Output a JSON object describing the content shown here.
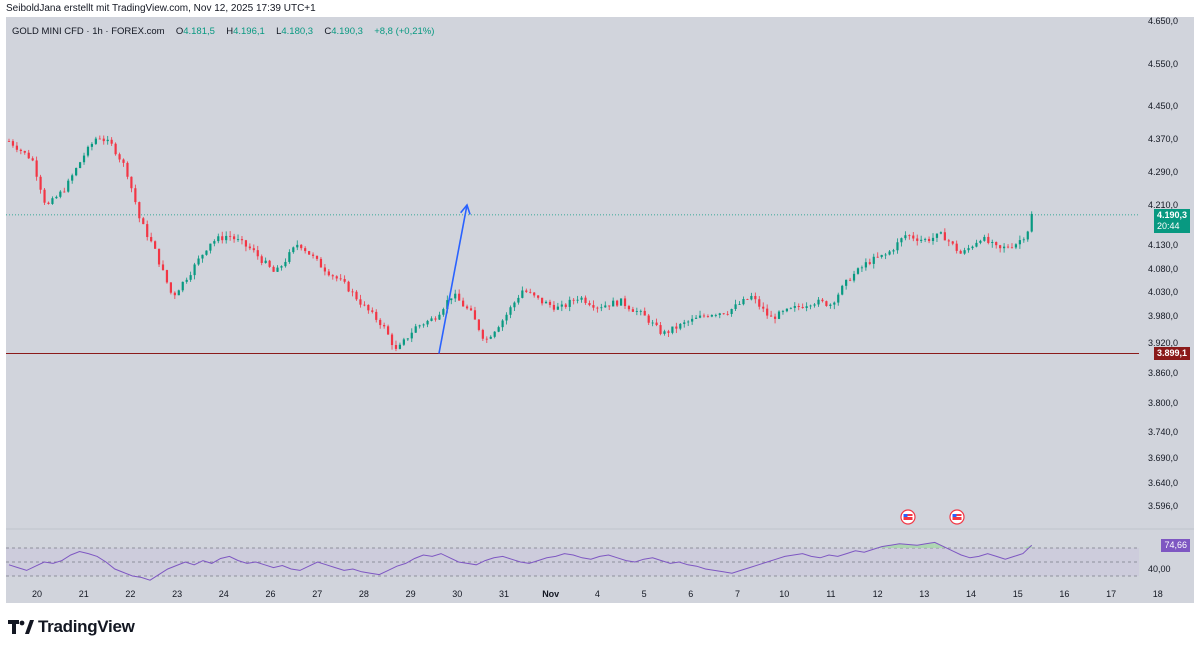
{
  "attribution": "SeiboldJana erstellt mit TradingView.com, Nov 12, 2025 17:39 UTC+1",
  "legend": {
    "symbol": "GOLD MINI CFD · 1h · FOREX.com",
    "open_label": "O",
    "open": "4.181,5",
    "high_label": "H",
    "high": "4.196,1",
    "low_label": "L",
    "low": "4.180,3",
    "close_label": "C",
    "close": "4.190,3",
    "change": "+8,8 (+0,21%)"
  },
  "brand": {
    "name": "TradingView",
    "logo_icon": "tradingview-logo-icon"
  },
  "colors": {
    "background": "#d1d4dc",
    "up": "#089981",
    "down": "#f23645",
    "support": "#8b1a1a",
    "arrow": "#2962ff",
    "rsi": "#7e57c2",
    "rsi_fill": "#a5d6a7"
  },
  "chart_data": [
    {
      "type": "candlestick",
      "title": "GOLD MINI CFD · 1h · FOREX.com",
      "y_ticks": [
        "4.650,0",
        "4.550,0",
        "4.450,0",
        "4.370,0",
        "4.290,0",
        "4.210,0",
        "4.130,0",
        "4.080,0",
        "4.030,0",
        "3.980,0",
        "3.920,0",
        "3.860,0",
        "3.800,0",
        "3.740,0",
        "3.690,0",
        "3.640,0",
        "3.596,0"
      ],
      "x_ticks": [
        "20",
        "21",
        "22",
        "23",
        "24",
        "26",
        "27",
        "28",
        "29",
        "30",
        "31",
        "Nov",
        "4",
        "5",
        "6",
        "7",
        "10",
        "11",
        "12",
        "13",
        "14",
        "15",
        "16",
        "17",
        "18"
      ],
      "ylim": [
        3596,
        4650
      ],
      "price_path": [
        {
          "x": 0,
          "y": 4365
        },
        {
          "x": 0.5,
          "y": 4320
        },
        {
          "x": 0.8,
          "y": 4205
        },
        {
          "x": 1.2,
          "y": 4250
        },
        {
          "x": 1.6,
          "y": 4330
        },
        {
          "x": 1.9,
          "y": 4378
        },
        {
          "x": 2.2,
          "y": 4355
        },
        {
          "x": 2.5,
          "y": 4300
        },
        {
          "x": 2.8,
          "y": 4180
        },
        {
          "x": 3.1,
          "y": 4125
        },
        {
          "x": 3.5,
          "y": 4020
        },
        {
          "x": 3.9,
          "y": 4075
        },
        {
          "x": 4.3,
          "y": 4135
        },
        {
          "x": 4.7,
          "y": 4150
        },
        {
          "x": 5.2,
          "y": 4120
        },
        {
          "x": 5.7,
          "y": 4070
        },
        {
          "x": 6.2,
          "y": 4135
        },
        {
          "x": 6.7,
          "y": 4085
        },
        {
          "x": 7.2,
          "y": 4045
        },
        {
          "x": 7.6,
          "y": 4000
        },
        {
          "x": 8.0,
          "y": 3960
        },
        {
          "x": 8.3,
          "y": 3902
        },
        {
          "x": 8.7,
          "y": 3955
        },
        {
          "x": 9.1,
          "y": 3975
        },
        {
          "x": 9.5,
          "y": 4025
        },
        {
          "x": 9.9,
          "y": 3985
        },
        {
          "x": 10.2,
          "y": 3925
        },
        {
          "x": 10.6,
          "y": 3975
        },
        {
          "x": 11.0,
          "y": 4035
        },
        {
          "x": 11.4,
          "y": 4010
        },
        {
          "x": 11.8,
          "y": 3995
        },
        {
          "x": 12.2,
          "y": 4020
        },
        {
          "x": 12.6,
          "y": 4000
        },
        {
          "x": 13.1,
          "y": 4010
        },
        {
          "x": 13.6,
          "y": 3980
        },
        {
          "x": 14.0,
          "y": 3940
        },
        {
          "x": 14.5,
          "y": 3965
        },
        {
          "x": 15.0,
          "y": 3985
        },
        {
          "x": 15.4,
          "y": 3990
        },
        {
          "x": 15.9,
          "y": 4020
        },
        {
          "x": 16.3,
          "y": 3975
        },
        {
          "x": 16.8,
          "y": 3995
        },
        {
          "x": 17.2,
          "y": 4010
        },
        {
          "x": 17.6,
          "y": 4005
        },
        {
          "x": 18.0,
          "y": 4060
        },
        {
          "x": 18.4,
          "y": 4095
        },
        {
          "x": 18.8,
          "y": 4110
        },
        {
          "x": 19.2,
          "y": 4150
        },
        {
          "x": 19.6,
          "y": 4140
        },
        {
          "x": 20.0,
          "y": 4150
        },
        {
          "x": 20.4,
          "y": 4110
        },
        {
          "x": 20.8,
          "y": 4145
        },
        {
          "x": 21.2,
          "y": 4120
        },
        {
          "x": 21.6,
          "y": 4135
        },
        {
          "x": 21.8,
          "y": 4155
        },
        {
          "x": 21.9,
          "y": 4190
        }
      ],
      "current_price": {
        "value": 4190.3,
        "label": "4.190,3",
        "countdown": "20:44"
      },
      "support_level": {
        "value": 3899.1,
        "label": "3.899,1"
      },
      "annotations": [
        {
          "type": "arrow",
          "from": {
            "x": 9.25,
            "y": 3899
          },
          "to": {
            "x": 9.85,
            "y": 4210
          }
        }
      ]
    },
    {
      "type": "line",
      "title": "RSI",
      "ylim": [
        20,
        80
      ],
      "levels": [
        70,
        50,
        30
      ],
      "tick_labels": [
        "40,00"
      ],
      "last_value": {
        "value": 74.66,
        "label": "74,66"
      },
      "values": [
        46,
        42,
        38,
        44,
        50,
        48,
        52,
        60,
        65,
        62,
        58,
        50,
        40,
        35,
        30,
        28,
        24,
        32,
        40,
        45,
        50,
        46,
        52,
        48,
        55,
        58,
        52,
        48,
        50,
        46,
        42,
        45,
        40,
        38,
        44,
        50,
        46,
        42,
        38,
        40,
        36,
        34,
        32,
        38,
        44,
        48,
        55,
        60,
        58,
        62,
        56,
        50,
        48,
        46,
        52,
        56,
        58,
        54,
        50,
        48,
        52,
        56,
        58,
        62,
        60,
        56,
        54,
        58,
        60,
        56,
        52,
        50,
        54,
        56,
        52,
        48,
        50,
        46,
        44,
        40,
        38,
        36,
        34,
        38,
        42,
        46,
        50,
        54,
        58,
        60,
        62,
        58,
        56,
        60,
        58,
        62,
        66,
        64,
        68,
        72,
        74,
        76,
        75,
        74,
        76,
        78,
        72,
        66,
        60,
        56,
        58,
        62,
        58,
        54,
        58,
        62,
        74
      ]
    }
  ]
}
